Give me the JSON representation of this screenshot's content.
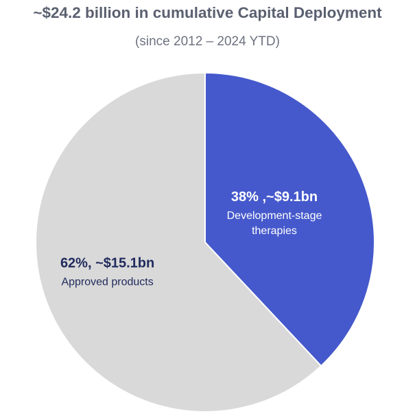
{
  "header": {
    "title": "~$24.2 billion in cumulative Capital Deployment",
    "subtitle": "(since 2012 – 2024 YTD)"
  },
  "colors": {
    "development": "#4559cc",
    "approved": "#d9d9d9",
    "dark_label": "#1f2a5c",
    "light_label": "#ffffff"
  },
  "chart_data": {
    "type": "pie",
    "title": "~$24.2 billion in cumulative Capital Deployment",
    "subtitle": "(since 2012 – 2024 YTD)",
    "slices": [
      {
        "value_pct": 38,
        "amount_bn": 9.1,
        "label_value": "38% ,~$9.1bn",
        "label_lines": [
          "Development-stage",
          "therapies"
        ],
        "color": "#4559cc"
      },
      {
        "value_pct": 62,
        "amount_bn": 15.1,
        "label_value": "62%, ~$15.1bn",
        "label_lines": [
          "Approved products"
        ],
        "color": "#d9d9d9"
      }
    ]
  }
}
